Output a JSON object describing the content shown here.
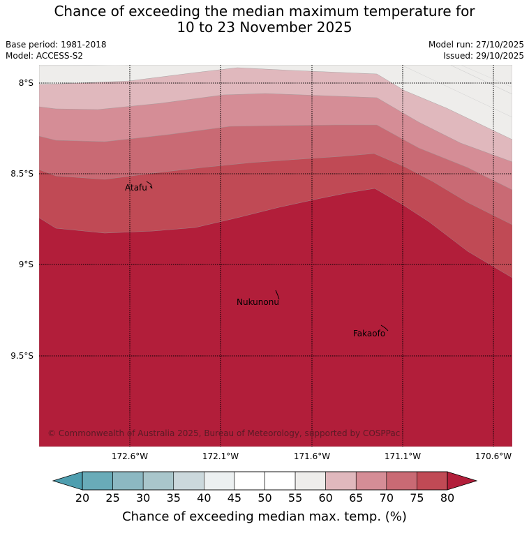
{
  "header": {
    "title_line1": "Chance of exceeding the median maximum temperature for",
    "title_line2": "10 to 23 November 2025",
    "base_period": "Base period: 1981-2018",
    "model": "Model: ACCESS-S2",
    "model_run": "Model run: 27/10/2025",
    "issued": "Issued: 29/10/2025"
  },
  "map": {
    "latitudes": [
      "8°S",
      "8.5°S",
      "9°S",
      "9.5°S"
    ],
    "longitudes": [
      "172.6°W",
      "172.1°W",
      "171.6°W",
      "171.1°W",
      "170.6°W"
    ],
    "islands": [
      "Atafu",
      "Nukunonu",
      "Fakaofo"
    ],
    "copyright": "© Commonwealth of Australia 2025, Bureau of Meteorology, supported by COSPPac",
    "band_colors": [
      "#eeedeb",
      "#e0b8bd",
      "#d58d96",
      "#c96a74",
      "#c04a55",
      "#b21e3a"
    ]
  },
  "colorbar": {
    "ticks": [
      "20",
      "25",
      "30",
      "35",
      "40",
      "45",
      "50",
      "55",
      "60",
      "65",
      "70",
      "75",
      "80"
    ],
    "colors": [
      "#69abb8",
      "#8cb8c2",
      "#a9c6cb",
      "#cbd8dc",
      "#ecf0f1",
      "#ffffff",
      "#ffffff",
      "#eeedeb",
      "#e0b8bd",
      "#d58d96",
      "#c96a74",
      "#c04a55"
    ],
    "low_color": "#4e9eaf",
    "high_color": "#b21e3a",
    "label": "Chance of exceeding median max. temp. (%)"
  }
}
